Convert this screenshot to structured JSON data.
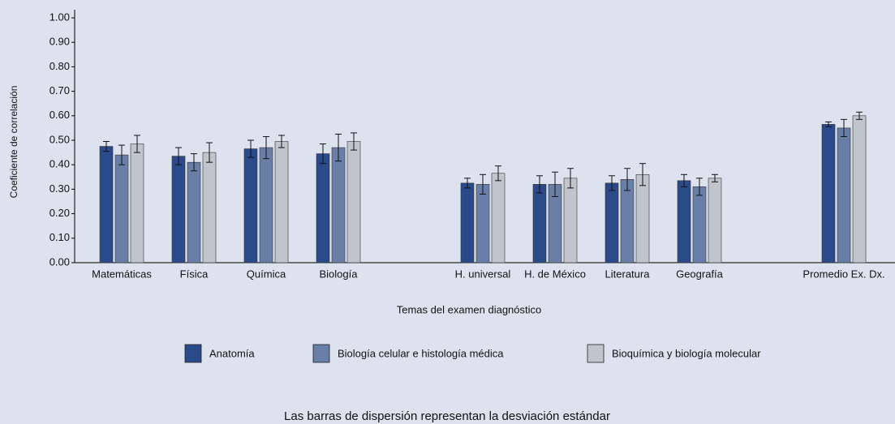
{
  "chart_data": {
    "type": "bar",
    "ylabel": "Coeficiente de correlación",
    "xlabel": "Temas del examen diagnóstico",
    "note": "Las barras de dispersión representan la desviación estándar",
    "categories": [
      "Matemáticas",
      "Física",
      "Química",
      "Biología",
      null,
      "H. universal",
      "H. de México",
      "Literatura",
      "Geografía",
      null,
      "Promedio Ex. Dx."
    ],
    "series": [
      {
        "name": "Anatomía",
        "color": "#2b4a8a",
        "values": [
          0.475,
          0.435,
          0.465,
          0.445,
          null,
          0.325,
          0.32,
          0.325,
          0.335,
          null,
          0.565
        ],
        "errors": [
          0.02,
          0.035,
          0.035,
          0.04,
          null,
          0.02,
          0.035,
          0.03,
          0.025,
          null,
          0.01
        ]
      },
      {
        "name": "Biología celular e histología médica",
        "color": "#6a7fa8",
        "values": [
          0.44,
          0.41,
          0.47,
          0.47,
          null,
          0.32,
          0.32,
          0.34,
          0.31,
          null,
          0.55
        ],
        "errors": [
          0.04,
          0.035,
          0.045,
          0.055,
          null,
          0.04,
          0.05,
          0.045,
          0.035,
          null,
          0.035
        ]
      },
      {
        "name": "Bioquímica y biología molecular",
        "color": "#c0c4cc",
        "values": [
          0.485,
          0.45,
          0.495,
          0.495,
          null,
          0.365,
          0.345,
          0.36,
          0.345,
          null,
          0.6
        ],
        "errors": [
          0.035,
          0.04,
          0.025,
          0.035,
          null,
          0.03,
          0.04,
          0.045,
          0.015,
          null,
          0.015
        ]
      }
    ],
    "ylim": [
      0,
      1
    ],
    "yticks": [
      {
        "value": 0,
        "label": "0.00"
      },
      {
        "value": 0.1,
        "label": "0.10"
      },
      {
        "value": 0.2,
        "label": "0.20"
      },
      {
        "value": 0.3,
        "label": "0.30"
      },
      {
        "value": 0.4,
        "label": "0.40"
      },
      {
        "value": 0.5,
        "label": "0.50"
      },
      {
        "value": 0.6,
        "label": "0.60"
      },
      {
        "value": 0.7,
        "label": "0.70"
      },
      {
        "value": 0.8,
        "label": "0.80"
      },
      {
        "value": 0.9,
        "label": "0.90"
      },
      {
        "value": 1,
        "label": "1.00"
      }
    ],
    "grid": false,
    "legend": "bottom"
  }
}
